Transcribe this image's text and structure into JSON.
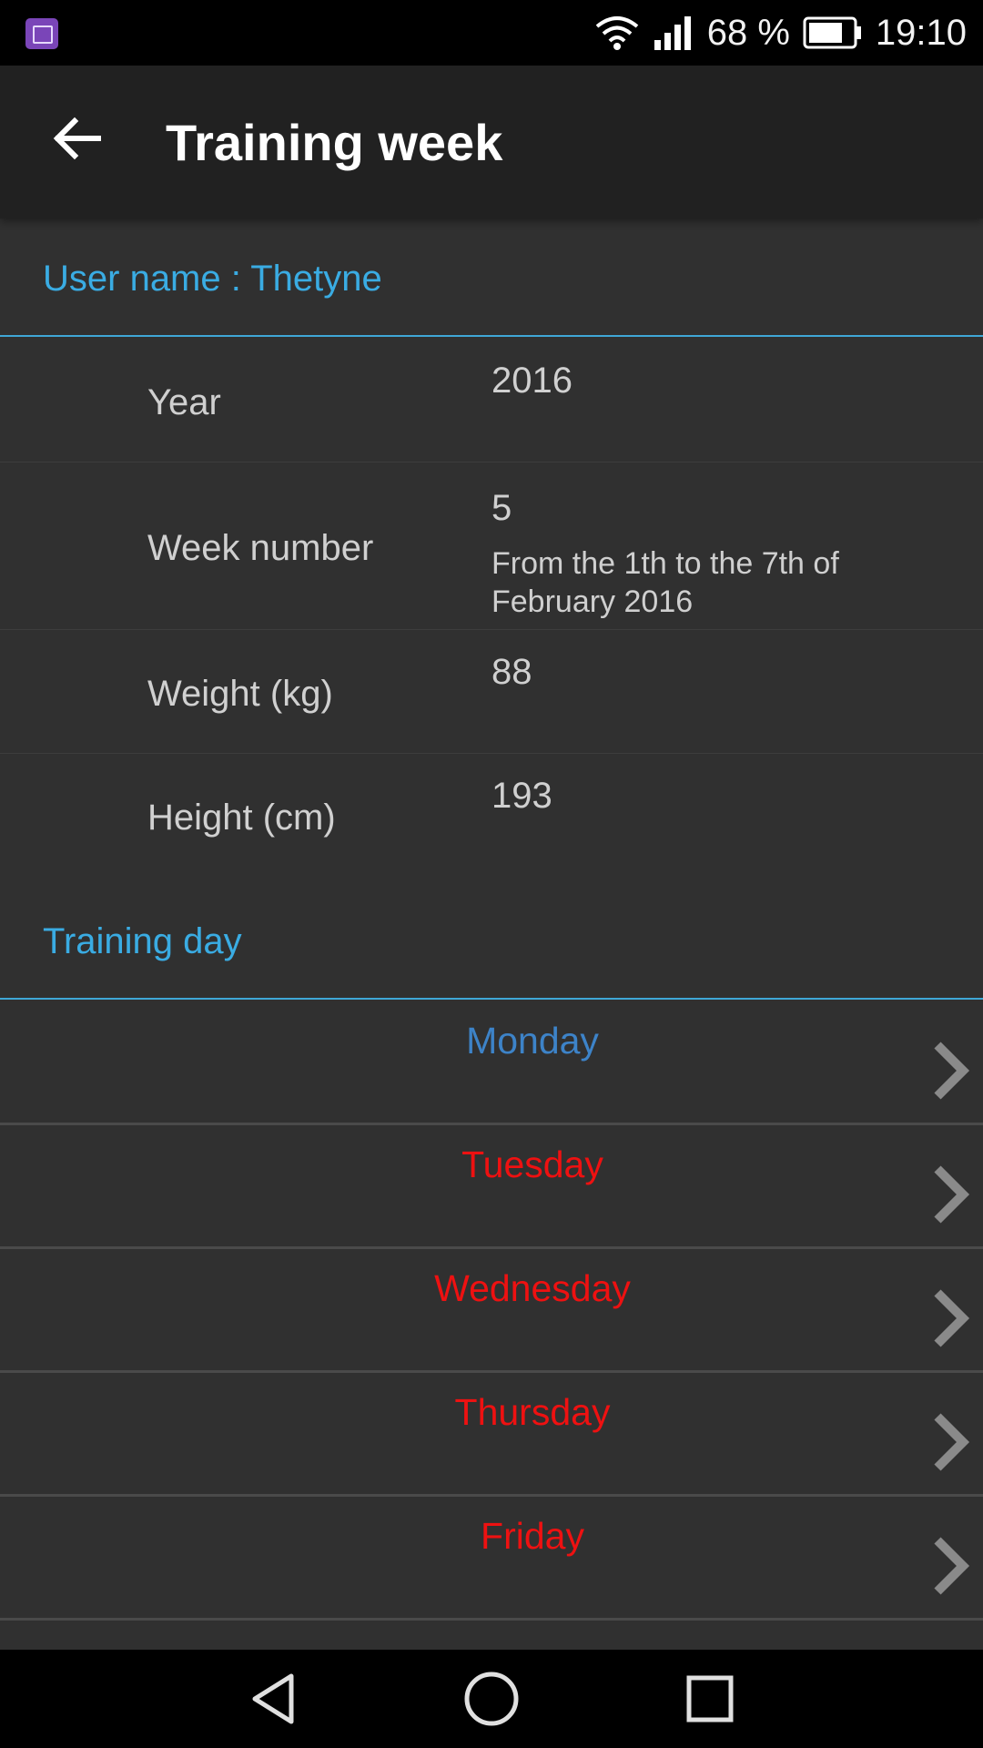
{
  "status_bar": {
    "battery_percent": "68 %",
    "time": "19:10",
    "icons": [
      "gallery-app-icon",
      "wifi-icon",
      "signal-icon",
      "battery-icon"
    ]
  },
  "app_bar": {
    "back_icon": "arrow-left-icon",
    "title": "Training week"
  },
  "user_section": {
    "header": "User name : Thetyne"
  },
  "fields": {
    "year": {
      "label": "Year",
      "value": "2016"
    },
    "week": {
      "label": "Week number",
      "value": "5",
      "detail": "From the 1th to the 7th of February 2016"
    },
    "weight": {
      "label": "Weight (kg)",
      "value": "88"
    },
    "height": {
      "label": "Height (cm)",
      "value": "193"
    }
  },
  "training_section": {
    "header": "Training day"
  },
  "days": [
    {
      "label": "Monday",
      "color": "#3d83c8"
    },
    {
      "label": "Tuesday",
      "color": "#ee1111"
    },
    {
      "label": "Wednesday",
      "color": "#ee1111"
    },
    {
      "label": "Thursday",
      "color": "#ee1111"
    },
    {
      "label": "Friday",
      "color": "#ee1111"
    }
  ],
  "colors": {
    "accent": "#3aace3",
    "background": "#303030",
    "app_bar": "#212121",
    "active_day": "#3d83c8",
    "inactive_day": "#ee1111"
  },
  "nav_bar": {
    "icons": [
      "back-triangle-icon",
      "home-circle-icon",
      "recents-square-icon"
    ]
  }
}
